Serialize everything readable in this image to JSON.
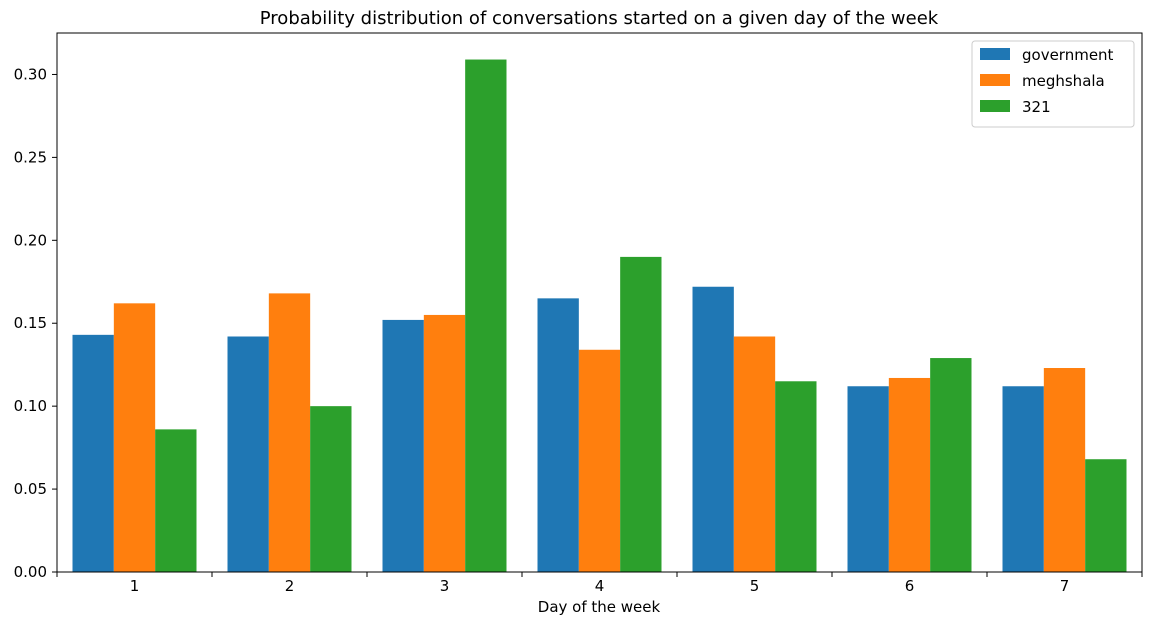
{
  "chart_data": {
    "type": "bar",
    "title": "Probability distribution of conversations started on a given day of the week",
    "xlabel": "Day of the week",
    "ylabel": "",
    "categories": [
      "1",
      "2",
      "3",
      "4",
      "5",
      "6",
      "7"
    ],
    "series": [
      {
        "name": "government",
        "color": "#1f77b4",
        "values": [
          0.143,
          0.142,
          0.152,
          0.165,
          0.172,
          0.112,
          0.112
        ]
      },
      {
        "name": "meghshala",
        "color": "#ff7f0e",
        "values": [
          0.162,
          0.168,
          0.155,
          0.134,
          0.142,
          0.117,
          0.123
        ]
      },
      {
        "name": "321",
        "color": "#2ca02c",
        "values": [
          0.086,
          0.1,
          0.309,
          0.19,
          0.115,
          0.129,
          0.068
        ]
      }
    ],
    "ylim": [
      0,
      0.325
    ],
    "yticks": [
      "0.00",
      "0.05",
      "0.10",
      "0.15",
      "0.20",
      "0.25",
      "0.30"
    ],
    "grid": false,
    "legend_position": "top-right"
  }
}
